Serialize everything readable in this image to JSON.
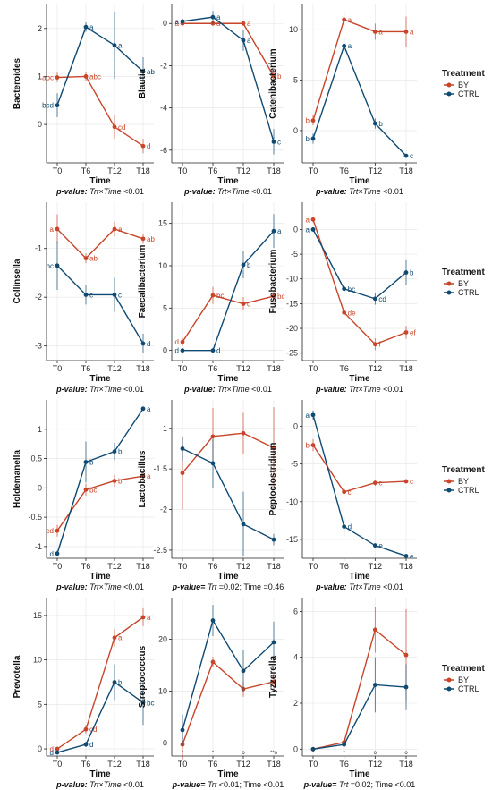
{
  "figure": {
    "legend_title": "Treatment",
    "legend_items": [
      {
        "label": "BY",
        "color": "#c8452a"
      },
      {
        "label": "CTRL",
        "color": "#0f4a73"
      }
    ],
    "time_label": "Time"
  },
  "chart_data": [
    {
      "type": "line",
      "title": "",
      "ylabel": "Bacteroides",
      "xlabel": "Time",
      "categories": [
        "T0",
        "T6",
        "T12",
        "T18"
      ],
      "ylim": [
        -0.8,
        2.5
      ],
      "yticks": [
        0,
        1,
        2
      ],
      "pvalue": {
        "bold": "p-value:",
        "italic": "Trt×Time",
        "rest": " <0.01"
      },
      "series": [
        {
          "name": "BY",
          "values": [
            0.98,
            1.0,
            -0.05,
            -0.45
          ],
          "err": [
            0.1,
            0.1,
            0.25,
            0.15
          ],
          "letters": [
            "abc",
            "abc",
            "cd",
            "d"
          ]
        },
        {
          "name": "CTRL",
          "values": [
            0.4,
            2.03,
            1.65,
            1.1
          ],
          "err": [
            0.25,
            0.1,
            0.7,
            0.3
          ],
          "letters": [
            "bcd",
            "a",
            "a",
            "ab"
          ]
        }
      ]
    },
    {
      "type": "line",
      "title": "",
      "ylabel": "Blautia",
      "xlabel": "Time",
      "categories": [
        "T0",
        "T6",
        "T12",
        "T18"
      ],
      "ylim": [
        -6.6,
        0.9
      ],
      "yticks": [
        -6,
        -4,
        -2,
        0
      ],
      "pvalue": {
        "bold": "p-value:",
        "italic": "Trt×Time",
        "rest": " <0.01"
      },
      "series": [
        {
          "name": "BY",
          "values": [
            0.0,
            0.0,
            0.0,
            -2.5
          ],
          "err": [
            0.1,
            0.1,
            0.1,
            0.3
          ],
          "letters": [
            "a",
            "a",
            "a",
            "b"
          ]
        },
        {
          "name": "CTRL",
          "values": [
            0.1,
            0.3,
            -0.8,
            -5.6
          ],
          "err": [
            0.1,
            0.3,
            0.5,
            0.6
          ],
          "letters": [
            "a",
            "a",
            "a",
            "c"
          ]
        }
      ]
    },
    {
      "type": "line",
      "title": "",
      "ylabel": "Catenibacterium",
      "xlabel": "Time",
      "categories": [
        "T0",
        "T6",
        "T12",
        "T18"
      ],
      "ylim": [
        -3.2,
        12.5
      ],
      "yticks": [
        0,
        5,
        10
      ],
      "pvalue": {
        "bold": "p-value:",
        "italic": "Trt×Time",
        "rest": " <0.01"
      },
      "series": [
        {
          "name": "BY",
          "values": [
            1.0,
            11.0,
            9.8,
            9.8
          ],
          "err": [
            0.5,
            0.8,
            0.8,
            1.5
          ],
          "letters": [
            "b",
            "a",
            "a",
            "a"
          ]
        },
        {
          "name": "CTRL",
          "values": [
            -0.8,
            8.4,
            0.7,
            -2.5
          ],
          "err": [
            0.5,
            0.8,
            0.5,
            0.2
          ],
          "letters": [
            "b",
            "a",
            "b",
            "c"
          ]
        }
      ]
    },
    {
      "type": "line",
      "title": "",
      "ylabel": "Collinsella",
      "xlabel": "Time",
      "categories": [
        "T0",
        "T6",
        "T12",
        "T18"
      ],
      "ylim": [
        -3.3,
        -0.05
      ],
      "yticks": [
        -3,
        -2,
        -1
      ],
      "pvalue": {
        "bold": "p-value:",
        "italic": "Trt×Time",
        "rest": " <0.01"
      },
      "series": [
        {
          "name": "BY",
          "values": [
            -0.6,
            -1.2,
            -0.6,
            -0.8
          ],
          "err": [
            0.3,
            0.1,
            0.15,
            0.1
          ],
          "letters": [
            "a",
            "ab",
            "a",
            "ab"
          ]
        },
        {
          "name": "CTRL",
          "values": [
            -1.35,
            -1.95,
            -1.95,
            -2.95
          ],
          "err": [
            0.5,
            0.2,
            0.35,
            0.2
          ],
          "letters": [
            "bc",
            "c",
            "c",
            "d"
          ]
        }
      ]
    },
    {
      "type": "line",
      "title": "",
      "ylabel": "Faecalibacterium",
      "xlabel": "Time",
      "categories": [
        "T0",
        "T6",
        "T12",
        "T18"
      ],
      "ylim": [
        -1.2,
        17.5
      ],
      "yticks": [
        0,
        5,
        10,
        15
      ],
      "pvalue": {
        "bold": "p-value:",
        "italic": "Trt×Time",
        "rest": " <0.01"
      },
      "series": [
        {
          "name": "BY",
          "values": [
            1.0,
            6.5,
            5.5,
            6.4
          ],
          "err": [
            0.5,
            1.0,
            0.8,
            0.5
          ],
          "letters": [
            "d",
            "bc",
            "c",
            "bc"
          ]
        },
        {
          "name": "CTRL",
          "values": [
            0.0,
            0.0,
            10.1,
            14.1
          ],
          "err": [
            0.1,
            0.1,
            1.6,
            2.0
          ],
          "letters": [
            "d",
            "d",
            "b",
            "a"
          ]
        }
      ]
    },
    {
      "type": "line",
      "title": "",
      "ylabel": "Fusobacterium",
      "xlabel": "Time",
      "categories": [
        "T0",
        "T6",
        "T12",
        "T18"
      ],
      "ylim": [
        -26.5,
        5.5
      ],
      "yticks": [
        -25,
        -20,
        -15,
        -10,
        -5,
        0
      ],
      "pvalue": {
        "bold": "p-value:",
        "italic": "Trt×Time",
        "rest": " <0.01"
      },
      "series": [
        {
          "name": "BY",
          "values": [
            2.0,
            -16.8,
            -23.2,
            -20.8
          ],
          "err": [
            0.5,
            0.8,
            1.2,
            1.3
          ],
          "letters": [
            "a",
            "de",
            "f",
            "ef"
          ]
        },
        {
          "name": "CTRL",
          "values": [
            0.0,
            -12.0,
            -14.0,
            -8.7
          ],
          "err": [
            0.4,
            0.8,
            1.2,
            2.5
          ],
          "letters": [
            "a",
            "bc",
            "cd",
            "b"
          ]
        }
      ]
    },
    {
      "type": "line",
      "title": "",
      "ylabel": "Holdemanella",
      "xlabel": "Time",
      "categories": [
        "T0",
        "T6",
        "T12",
        "T18"
      ],
      "ylim": [
        -1.2,
        1.5
      ],
      "yticks": [
        -1,
        -0.5,
        0,
        0.5,
        1
      ],
      "pvalue": {
        "bold": "p-value:",
        "italic": "Trt×Time",
        "rest": " <0.01"
      },
      "series": [
        {
          "name": "BY",
          "values": [
            -0.73,
            -0.03,
            0.12,
            0.2
          ],
          "err": [
            0.1,
            0.1,
            0.1,
            0.08
          ],
          "letters": [
            "cd",
            "bc",
            "b",
            "a"
          ]
        },
        {
          "name": "CTRL",
          "values": [
            -1.12,
            0.44,
            0.62,
            1.35
          ],
          "err": [
            0.05,
            0.35,
            0.15,
            0.03
          ],
          "letters": [
            "d",
            "b",
            "b",
            "a"
          ]
        }
      ]
    },
    {
      "type": "line",
      "title": "",
      "ylabel": "Lactobacillus",
      "xlabel": "Time",
      "categories": [
        "T0",
        "T6",
        "T12",
        "T18"
      ],
      "ylim": [
        -2.6,
        -0.65
      ],
      "yticks": [
        -2.5,
        -2,
        -1.5,
        -1
      ],
      "pvalue": {
        "bold": "p-value=",
        "italic": "Trt",
        "rest": " =0.02; Time =0.46"
      },
      "series": [
        {
          "name": "BY",
          "values": [
            -1.55,
            -1.1,
            -1.06,
            -1.24
          ],
          "err": [
            0.45,
            0.35,
            0.25,
            0.5
          ],
          "letters": [
            "",
            "",
            "",
            ""
          ]
        },
        {
          "name": "CTRL",
          "values": [
            -1.25,
            -1.43,
            -2.18,
            -2.37
          ],
          "err": [
            0.15,
            0.3,
            0.4,
            0.07
          ],
          "letters": [
            "",
            "",
            "",
            ""
          ]
        }
      ]
    },
    {
      "type": "line",
      "title": "",
      "ylabel": "Peptoclostridium",
      "xlabel": "Time",
      "categories": [
        "T0",
        "T6",
        "T12",
        "T18"
      ],
      "ylim": [
        -17.5,
        3.5
      ],
      "yticks": [
        -15,
        -10,
        -5,
        0
      ],
      "pvalue": {
        "bold": "p-value:",
        "italic": "Trt×Time",
        "rest": " <0.01"
      },
      "series": [
        {
          "name": "BY",
          "values": [
            -2.5,
            -8.7,
            -7.5,
            -7.3
          ],
          "err": [
            0.8,
            0.6,
            0.4,
            0.3
          ],
          "letters": [
            "b",
            "c",
            "c",
            "c"
          ]
        },
        {
          "name": "CTRL",
          "values": [
            1.5,
            -13.3,
            -15.8,
            -17.2
          ],
          "err": [
            0.6,
            1.3,
            0.3,
            0.1
          ],
          "letters": [
            "a",
            "d",
            "e",
            "e"
          ]
        }
      ]
    },
    {
      "type": "line",
      "title": "",
      "ylabel": "Prevotella",
      "xlabel": "Time",
      "categories": [
        "T0",
        "T6",
        "T12",
        "T18"
      ],
      "ylim": [
        -0.8,
        17
      ],
      "yticks": [
        0,
        5,
        10,
        15
      ],
      "pvalue": {
        "bold": "p-value:",
        "italic": "Trt×Time",
        "rest": " <0.01"
      },
      "series": [
        {
          "name": "BY",
          "values": [
            0.0,
            2.2,
            12.5,
            14.8
          ],
          "err": [
            0.2,
            0.5,
            1.0,
            1.0
          ],
          "letters": [
            "d",
            "cd",
            "a",
            "a"
          ]
        },
        {
          "name": "CTRL",
          "values": [
            -0.4,
            0.5,
            7.5,
            5.2
          ],
          "err": [
            0.1,
            0.3,
            2.0,
            2.5
          ],
          "letters": [
            "d",
            "d",
            "b",
            "bc"
          ]
        }
      ]
    },
    {
      "type": "line",
      "title": "",
      "ylabel": "Streptococcus",
      "xlabel": "Time",
      "categories": [
        "T0",
        "T6",
        "T12",
        "T18"
      ],
      "ylim": [
        -2.5,
        28
      ],
      "yticks": [
        0,
        10,
        20
      ],
      "pvalue": {
        "bold": "p-value=",
        "italic": "Trt",
        "rest": " <0.01; Time <0.01"
      },
      "marks": [
        "*",
        "*",
        "o",
        "**o"
      ],
      "series": [
        {
          "name": "BY",
          "values": [
            -0.3,
            15.6,
            10.4,
            11.8
          ],
          "err": [
            3.0,
            1.0,
            1.5,
            1.5
          ],
          "letters": [
            "",
            "",
            "",
            ""
          ]
        },
        {
          "name": "CTRL",
          "values": [
            2.5,
            23.6,
            13.9,
            19.4
          ],
          "err": [
            3.0,
            3.0,
            4.0,
            4.0
          ],
          "letters": [
            "",
            "",
            "",
            ""
          ]
        }
      ]
    },
    {
      "type": "line",
      "title": "",
      "ylabel": "Tyzzerella",
      "xlabel": "Time",
      "categories": [
        "T0",
        "T6",
        "T12",
        "T18"
      ],
      "ylim": [
        -0.3,
        6.6
      ],
      "yticks": [
        0,
        2,
        4,
        6
      ],
      "pvalue": {
        "bold": "p-value=",
        "italic": "Trt",
        "rest": " =0.02; Time <0.01"
      },
      "marks": [
        "*",
        "*",
        "o",
        "o"
      ],
      "series": [
        {
          "name": "BY",
          "values": [
            0.0,
            0.3,
            5.2,
            4.1
          ],
          "err": [
            0.05,
            0.1,
            1.0,
            2.0
          ],
          "letters": [
            "",
            "",
            "",
            ""
          ]
        },
        {
          "name": "CTRL",
          "values": [
            0.0,
            0.2,
            2.8,
            2.7
          ],
          "err": [
            0.05,
            0.1,
            1.2,
            1.0
          ],
          "letters": [
            "",
            "",
            "",
            ""
          ]
        }
      ]
    }
  ]
}
